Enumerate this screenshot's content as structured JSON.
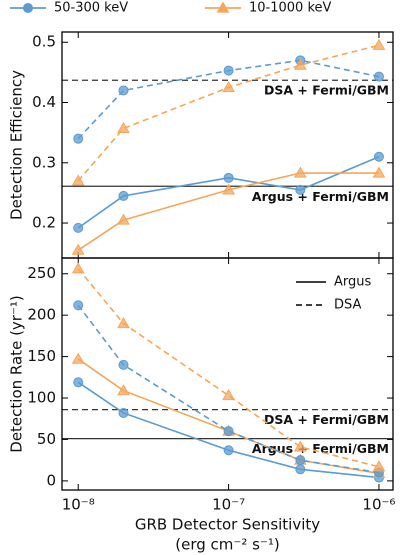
{
  "chart_data": {
    "type": "line",
    "log_x": true,
    "x": [
      1e-08,
      2e-08,
      1e-07,
      3e-07,
      1e-06
    ],
    "xlim": [
      7.8e-09,
      1.24e-06
    ],
    "xticks": [
      {
        "value": 1e-08,
        "label": "10⁻⁸"
      },
      {
        "value": 1e-07,
        "label": "10⁻⁷"
      },
      {
        "value": 1e-06,
        "label": "10⁻⁶"
      }
    ],
    "xlabel": "GRB Detector Sensitivity",
    "xlabel_units": "(erg cm⁻² s⁻¹)",
    "series": [
      {
        "name": "50-300 keV",
        "color": "#5b9bd0",
        "marker": "circle"
      },
      {
        "name": "10-1000 keV",
        "color": "#f5a65b",
        "marker": "triangle"
      }
    ],
    "styles": [
      {
        "name": "Argus",
        "dash": "solid"
      },
      {
        "name": "DSA",
        "dash": "dashed"
      }
    ],
    "panels": [
      {
        "ylabel": "Detection Efficiency",
        "ylim": [
          0.142,
          0.517
        ],
        "yticks": [
          0.2,
          0.3,
          0.4,
          0.5
        ],
        "show_style_legend": false,
        "lines": [
          {
            "series": 0,
            "style": 0,
            "values": [
              0.192,
              0.245,
              0.275,
              0.255,
              0.31
            ]
          },
          {
            "series": 1,
            "style": 0,
            "values": [
              0.155,
              0.205,
              0.255,
              0.283,
              0.283
            ]
          },
          {
            "series": 0,
            "style": 1,
            "values": [
              0.34,
              0.42,
              0.453,
              0.47,
              0.443
            ]
          },
          {
            "series": 1,
            "style": 1,
            "values": [
              0.27,
              0.357,
              0.425,
              0.462,
              0.495
            ]
          }
        ],
        "references": [
          {
            "label": "DSA + Fermi/GBM",
            "value": 0.437,
            "style": 1
          },
          {
            "label": "Argus + Fermi/GBM",
            "value": 0.261,
            "style": 0
          }
        ]
      },
      {
        "ylabel": "Detection Rate (yr⁻¹)",
        "ylim": [
          -11,
          269
        ],
        "yticks": [
          0,
          50,
          100,
          150,
          200,
          250
        ],
        "show_style_legend": true,
        "lines": [
          {
            "series": 0,
            "style": 0,
            "values": [
              119,
              82,
              37,
              14,
              4
            ]
          },
          {
            "series": 1,
            "style": 0,
            "values": [
              147,
              109,
              60,
              25,
              9
            ]
          },
          {
            "series": 0,
            "style": 1,
            "values": [
              212,
              140,
              60,
              25,
              10
            ]
          },
          {
            "series": 1,
            "style": 1,
            "values": [
              256,
              190,
              103,
              41,
              17
            ]
          }
        ],
        "references": [
          {
            "label": "DSA + Fermi/GBM",
            "value": 86,
            "style": 1
          },
          {
            "label": "Argus + Fermi/GBM",
            "value": 51,
            "style": 0
          }
        ]
      }
    ]
  }
}
